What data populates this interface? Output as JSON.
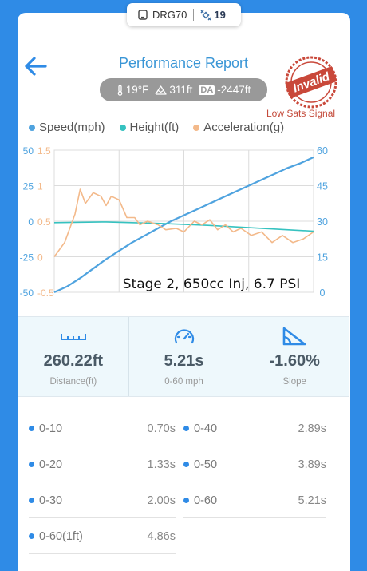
{
  "device": {
    "name": "DRG70",
    "satellites": "19"
  },
  "header": {
    "title": "Performance Report"
  },
  "conditions": {
    "temperature": "19°F",
    "altitude": "311ft",
    "da_label": "DA",
    "density_altitude": "-2447ft"
  },
  "stamp": {
    "text": "Invalid",
    "warning": "Low Sats Signal"
  },
  "legend": [
    {
      "label": "Speed(mph)",
      "color": "#4fa3df"
    },
    {
      "label": "Height(ft)",
      "color": "#36c2c0"
    },
    {
      "label": "Acceleration(g)",
      "color": "#f3b98a"
    }
  ],
  "chart_data": {
    "type": "line",
    "overlay_text": "Stage 2, 650cc Inj, 6.7 PSI",
    "axes": {
      "height_ticks": [
        "50",
        "25",
        "0",
        "-25",
        "-50"
      ],
      "accel_ticks": [
        "1.5",
        "1",
        "0.5",
        "0",
        "-0.5"
      ],
      "speed_ticks": [
        "60",
        "45",
        "30",
        "15",
        "0"
      ],
      "speed_range": [
        0,
        60
      ],
      "accel_range": [
        -0.5,
        1.5
      ],
      "height_range": [
        -50,
        50
      ]
    },
    "grid": true,
    "series": [
      {
        "name": "Speed(mph)",
        "axis": "speed",
        "x": [
          0,
          0.05,
          0.1,
          0.15,
          0.2,
          0.25,
          0.3,
          0.35,
          0.4,
          0.45,
          0.5,
          0.55,
          0.6,
          0.65,
          0.7,
          0.75,
          0.8,
          0.85,
          0.9,
          0.95,
          1
        ],
        "y": [
          0,
          2.5,
          6,
          10,
          14,
          17.5,
          21,
          24,
          27,
          30,
          32.5,
          35,
          37.5,
          40,
          42.5,
          45,
          47.5,
          50,
          52.5,
          54.5,
          57
        ]
      },
      {
        "name": "Height(ft)",
        "axis": "height",
        "x": [
          0,
          0.2,
          0.4,
          0.6,
          0.8,
          1
        ],
        "y": [
          -1,
          -0.5,
          -1.5,
          -3,
          -5,
          -7
        ]
      },
      {
        "name": "Acceleration(g)",
        "axis": "accel",
        "x": [
          0,
          0.04,
          0.08,
          0.1,
          0.12,
          0.15,
          0.18,
          0.2,
          0.22,
          0.25,
          0.28,
          0.31,
          0.33,
          0.36,
          0.4,
          0.43,
          0.47,
          0.5,
          0.54,
          0.57,
          0.6,
          0.63,
          0.66,
          0.69,
          0.72,
          0.76,
          0.8,
          0.84,
          0.88,
          0.92,
          0.96,
          1
        ],
        "y": [
          0,
          0.2,
          0.6,
          0.95,
          0.75,
          0.9,
          0.85,
          0.72,
          0.85,
          0.8,
          0.55,
          0.55,
          0.45,
          0.5,
          0.45,
          0.38,
          0.4,
          0.35,
          0.5,
          0.45,
          0.52,
          0.38,
          0.45,
          0.35,
          0.4,
          0.3,
          0.35,
          0.2,
          0.3,
          0.2,
          0.25,
          0.35
        ]
      }
    ]
  },
  "stats": [
    {
      "value": "260.22ft",
      "label": "Distance(ft)",
      "icon": "ruler-icon"
    },
    {
      "value": "5.21s",
      "label": "0-60 mph",
      "icon": "speedometer-icon"
    },
    {
      "value": "-1.60%",
      "label": "Slope",
      "icon": "slope-icon"
    }
  ],
  "times": [
    [
      {
        "label": "0-10",
        "value": "0.70s"
      },
      {
        "label": "0-40",
        "value": "2.89s"
      }
    ],
    [
      {
        "label": "0-20",
        "value": "1.33s"
      },
      {
        "label": "0-50",
        "value": "3.89s"
      }
    ],
    [
      {
        "label": "0-30",
        "value": "2.00s"
      },
      {
        "label": "0-60",
        "value": "5.21s"
      }
    ],
    [
      {
        "label": "0-60(1ft)",
        "value": "4.86s"
      }
    ]
  ]
}
